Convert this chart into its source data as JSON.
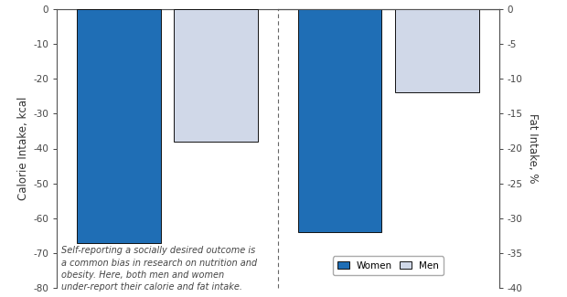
{
  "calorie_women": -67,
  "calorie_men": -38,
  "fat_women": -32,
  "fat_men": -12,
  "calorie_ylim": [
    -80,
    0
  ],
  "fat_ylim": [
    -40,
    0
  ],
  "calorie_yticks": [
    0,
    -10,
    -20,
    -30,
    -40,
    -50,
    -60,
    -70,
    -80
  ],
  "fat_yticks": [
    0,
    -5,
    -10,
    -15,
    -20,
    -25,
    -30,
    -35,
    -40
  ],
  "color_women": "#1f6eb5",
  "color_men": "#d0d8e8",
  "bar_edgecolor": "#111111",
  "ylabel_left": "Calorie Intake, kcal",
  "ylabel_right": "Fat Intake, %",
  "annotation_text": "Self-reporting a socially desired outcome is\na common bias in research on nutrition and\nobesity. Here, both men and women\nunder-report their calorie and fat intake.",
  "legend_labels": [
    "Women",
    "Men"
  ],
  "background_color": "#ffffff",
  "spine_color": "#555555",
  "tick_color": "#444444",
  "label_color": "#333333",
  "annotation_fontsize": 7.0,
  "axis_fontsize": 8.5,
  "tick_fontsize": 7.5
}
